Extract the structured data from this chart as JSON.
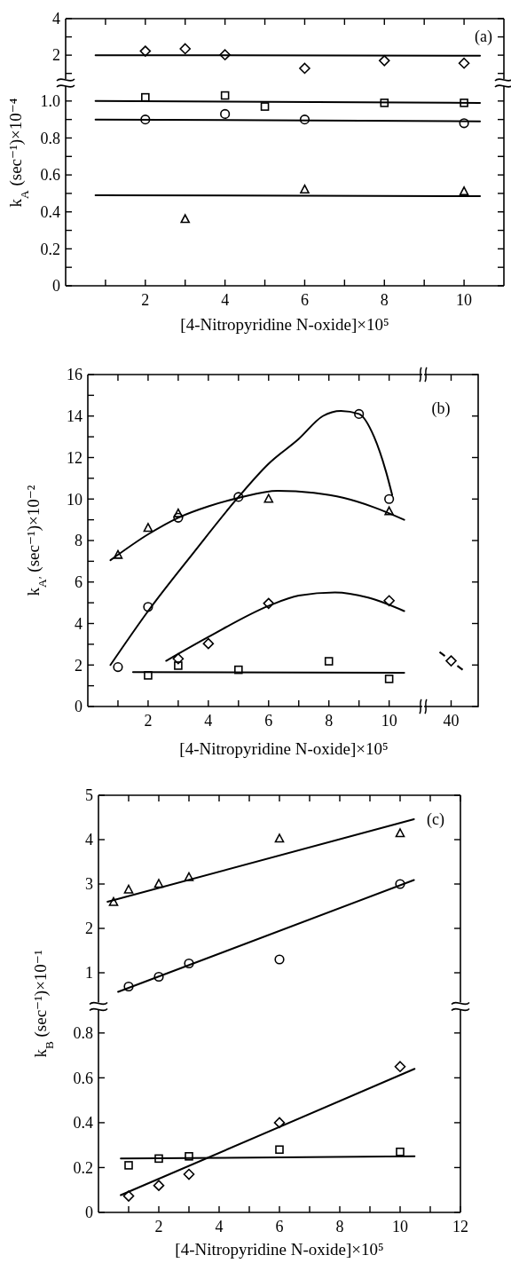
{
  "chart_data": [
    {
      "type": "scatter",
      "annotations": [
        "(a)"
      ],
      "xlim": [
        0,
        11
      ],
      "ylim": [
        0.5,
        4
      ],
      "tick_labels": "y",
      "xticks": [
        {
          "value": 1,
          "label": null
        },
        2,
        {
          "value": 3,
          "label": null
        },
        4,
        {
          "value": 5,
          "label": null
        },
        6,
        {
          "value": 7,
          "label": null
        },
        8,
        {
          "value": 9,
          "label": null
        },
        10
      ],
      "yticks": [
        {
          "value": 1,
          "label": null
        },
        2,
        {
          "value": 3,
          "label": null
        },
        4
      ],
      "series": [
        {
          "marker": "diamond",
          "color": "#000000",
          "x": [
            2,
            3,
            4,
            6,
            8,
            10
          ],
          "values": [
            2.22,
            2.35,
            2.02,
            1.28,
            1.7,
            1.56
          ]
        },
        {
          "type": "line",
          "color": "#000000",
          "x": [
            0.75,
            10.4
          ],
          "values": [
            2.0,
            1.97
          ]
        }
      ]
    },
    {
      "type": "scatter",
      "xlabel": "[4-Nitropyridine N-oxide]×10⁵",
      "ylabel": "k$_{A}$  (sec⁻¹)×10⁻⁴",
      "xlim": [
        0,
        11
      ],
      "ylim": [
        0,
        1.1
      ],
      "xticks": [
        {
          "value": 1,
          "label": null
        },
        2,
        {
          "value": 3,
          "label": null
        },
        4,
        {
          "value": 5,
          "label": null
        },
        6,
        {
          "value": 7,
          "label": null
        },
        8,
        {
          "value": 9,
          "label": null
        },
        10
      ],
      "yticks": [
        0,
        {
          "value": 0.1,
          "label": null
        },
        0.2,
        {
          "value": 0.3,
          "label": null
        },
        0.4,
        {
          "value": 0.5,
          "label": null
        },
        0.6,
        {
          "value": 0.7,
          "label": null
        },
        0.8,
        {
          "value": 0.9,
          "label": null
        },
        {
          "value": 1,
          "label": "1.0"
        }
      ],
      "series": [
        {
          "marker": "square",
          "color": "#000000",
          "x": [
            2,
            4,
            5,
            8,
            10
          ],
          "values": [
            1.02,
            1.03,
            0.97,
            0.99,
            0.99
          ]
        },
        {
          "type": "line",
          "color": "#000000",
          "x": [
            0.75,
            10.4
          ],
          "values": [
            1.0,
            0.99
          ]
        },
        {
          "marker": "circle",
          "color": "#000000",
          "x": [
            2,
            4,
            6,
            10
          ],
          "values": [
            0.9,
            0.93,
            0.9,
            0.88
          ]
        },
        {
          "type": "line",
          "color": "#000000",
          "x": [
            0.75,
            10.4
          ],
          "values": [
            0.9,
            0.89
          ]
        },
        {
          "marker": "triangle",
          "color": "#000000",
          "x": [
            3,
            6,
            10
          ],
          "values": [
            0.36,
            0.52,
            0.51
          ]
        },
        {
          "type": "line",
          "color": "#000000",
          "x": [
            0.75,
            10.4
          ],
          "values": [
            0.49,
            0.485
          ]
        }
      ]
    },
    {
      "type": "scatter",
      "annotations": [
        "(b)"
      ],
      "xlabel": "[4-Nitropyridine N-oxide]×10⁵",
      "ylabel": "k$_{A′}$  (sec⁻¹)×10⁻²",
      "xlim": [
        0,
        11.1
      ],
      "ylim": [
        0,
        16
      ],
      "xticks": [
        {
          "value": 1,
          "label": null
        },
        2,
        {
          "value": 3,
          "label": null
        },
        4,
        {
          "value": 5,
          "label": null
        },
        6,
        {
          "value": 7,
          "label": null
        },
        8,
        {
          "value": 9,
          "label": null
        },
        10
      ],
      "yticks": [
        0,
        {
          "value": 1,
          "label": null
        },
        2,
        {
          "value": 3,
          "label": null
        },
        4,
        {
          "value": 5,
          "label": null
        },
        6,
        {
          "value": 7,
          "label": null
        },
        8,
        {
          "value": 9,
          "label": null
        },
        10,
        {
          "value": 11,
          "label": null
        },
        12,
        {
          "value": 13,
          "label": null
        },
        14,
        {
          "value": 15,
          "label": null
        },
        16
      ],
      "series": [
        {
          "marker": "circle",
          "color": "#000000",
          "x": [
            1,
            2,
            3,
            5,
            9,
            10
          ],
          "values": [
            1.9,
            4.8,
            9.1,
            10.1,
            14.1,
            10.0
          ]
        },
        {
          "type": "line",
          "color": "#000000",
          "x": [
            0.75,
            2,
            3.5,
            5,
            6,
            7,
            7.8,
            8.4,
            9,
            9.5,
            9.9,
            10.1
          ],
          "values": [
            2.0,
            4.6,
            7.4,
            10.1,
            11.7,
            12.9,
            14.0,
            14.25,
            14.1,
            13.0,
            11.3,
            10.2
          ]
        },
        {
          "marker": "triangle",
          "color": "#000000",
          "x": [
            1,
            2,
            3,
            6,
            10
          ],
          "values": [
            7.3,
            8.6,
            9.3,
            10.0,
            9.4
          ]
        },
        {
          "type": "line",
          "color": "#000000",
          "x": [
            0.75,
            2,
            3,
            4,
            5,
            6.3,
            7.5,
            8.5,
            9.5,
            10.5
          ],
          "values": [
            7.05,
            8.3,
            9.1,
            9.65,
            10.05,
            10.4,
            10.3,
            10.05,
            9.6,
            9.0
          ]
        },
        {
          "marker": "diamond",
          "color": "#000000",
          "x": [
            3,
            4,
            6,
            10
          ],
          "values": [
            2.3,
            3.03,
            4.97,
            5.1
          ]
        },
        {
          "type": "line",
          "color": "#000000",
          "x": [
            2.6,
            4,
            6,
            7,
            8.2,
            9.3,
            10.5
          ],
          "values": [
            2.2,
            3.35,
            4.85,
            5.35,
            5.5,
            5.25,
            4.6
          ]
        },
        {
          "marker": "square",
          "color": "#000000",
          "x": [
            2,
            3,
            5,
            8,
            10
          ],
          "values": [
            1.5,
            1.97,
            1.77,
            2.18,
            1.33
          ]
        },
        {
          "type": "line",
          "color": "#000000",
          "x": [
            1.5,
            10.5
          ],
          "values": [
            1.66,
            1.63
          ]
        }
      ]
    },
    {
      "type": "scatter",
      "categories": [
        "40"
      ],
      "ylim": [
        0,
        16
      ],
      "tick_labels": "x",
      "yticks": [
        0,
        2,
        4,
        6,
        8,
        10,
        12,
        14,
        16
      ],
      "series": [
        {
          "type": "scatter",
          "marker": "diamond",
          "color": "#000000",
          "values": [
            2.2
          ]
        }
      ]
    },
    {
      "type": "scatter",
      "annotations": [
        "(c)"
      ],
      "xlim": [
        0,
        12
      ],
      "ylim": [
        0.25,
        5
      ],
      "tick_labels": "y",
      "xticks": [
        {
          "value": 1,
          "label": null
        },
        2,
        {
          "value": 3,
          "label": null
        },
        4,
        {
          "value": 5,
          "label": null
        },
        6,
        {
          "value": 7,
          "label": null
        },
        8,
        {
          "value": 9,
          "label": null
        },
        10,
        {
          "value": 11,
          "label": null
        },
        12
      ],
      "yticks": [
        1,
        2,
        3,
        4,
        5
      ],
      "series": [
        {
          "marker": "triangle",
          "color": "#000000",
          "x": [
            0.5,
            1,
            2,
            3,
            6,
            10
          ],
          "values": [
            2.59,
            2.87,
            3.0,
            3.15,
            4.02,
            4.14
          ]
        },
        {
          "type": "line",
          "color": "#000000",
          "x": [
            0.3,
            10.46
          ],
          "values": [
            2.6,
            4.46
          ]
        },
        {
          "marker": "circle",
          "color": "#000000",
          "x": [
            1,
            2,
            3,
            6,
            10
          ],
          "values": [
            0.69,
            0.91,
            1.21,
            1.3,
            3.0
          ]
        },
        {
          "type": "line",
          "color": "#000000",
          "x": [
            0.65,
            10.46
          ],
          "values": [
            0.57,
            3.09
          ]
        }
      ]
    },
    {
      "type": "scatter",
      "xlabel": "[4-Nitropyridine N-oxide]×10⁵",
      "ylabel": "k$_{B}$  (sec⁻¹)×10⁻¹",
      "xlim": [
        0,
        12
      ],
      "ylim": [
        0,
        0.92
      ],
      "xticks": [
        {
          "value": 1,
          "label": null
        },
        2,
        {
          "value": 3,
          "label": null
        },
        4,
        {
          "value": 5,
          "label": null
        },
        6,
        {
          "value": 7,
          "label": null
        },
        8,
        {
          "value": 9,
          "label": null
        },
        10,
        {
          "value": 11,
          "label": null
        },
        12
      ],
      "yticks": [
        0,
        0.2,
        0.4,
        0.6,
        0.8
      ],
      "series": [
        {
          "marker": "diamond",
          "color": "#000000",
          "x": [
            1,
            2,
            3,
            6,
            10
          ],
          "values": [
            0.073,
            0.12,
            0.17,
            0.4,
            0.65
          ]
        },
        {
          "type": "line",
          "color": "#000000",
          "x": [
            0.74,
            10.48
          ],
          "values": [
            0.077,
            0.64
          ]
        },
        {
          "marker": "square",
          "color": "#000000",
          "x": [
            1,
            2,
            3,
            6,
            10
          ],
          "values": [
            0.21,
            0.24,
            0.25,
            0.28,
            0.27
          ]
        },
        {
          "type": "line",
          "color": "#000000",
          "x": [
            0.74,
            10.48
          ],
          "values": [
            0.24,
            0.25
          ]
        }
      ]
    }
  ]
}
